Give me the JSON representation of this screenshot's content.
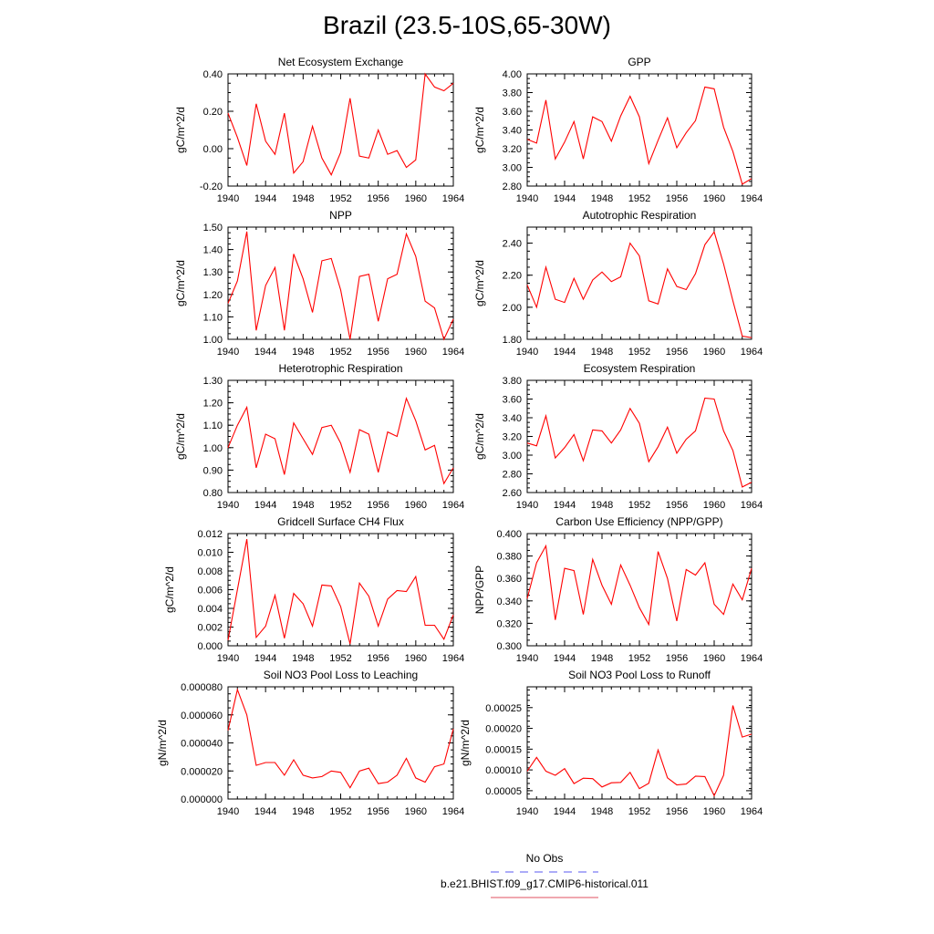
{
  "figure_title": "Brazil (23.5-10S,65-30W)",
  "legend": {
    "items": [
      {
        "label": "No Obs",
        "color": "#5a5af0",
        "dash": true
      },
      {
        "label": "b.e21.BHIST.f09_g17.CMIP6-historical.011",
        "color": "#e05060",
        "dash": false
      }
    ]
  },
  "line_color": "#ff0000",
  "chart_data": [
    {
      "type": "line",
      "title": "Net Ecosystem Exchange",
      "ylabel": "gC/m^2/d",
      "xlim": [
        1940,
        1964
      ],
      "xticks": [
        "1940",
        "1944",
        "1948",
        "1952",
        "1956",
        "1960",
        "1964"
      ],
      "ylim": [
        -0.2,
        0.4
      ],
      "yticks": [
        "-0.20",
        "0.00",
        "0.20",
        "0.40"
      ],
      "x": [
        1940,
        1941,
        1942,
        1943,
        1944,
        1945,
        1946,
        1947,
        1948,
        1949,
        1950,
        1951,
        1952,
        1953,
        1954,
        1955,
        1956,
        1957,
        1958,
        1959,
        1960,
        1961,
        1962,
        1963,
        1964
      ],
      "y": [
        0.19,
        0.06,
        -0.09,
        0.24,
        0.04,
        -0.03,
        0.19,
        -0.13,
        -0.07,
        0.12,
        -0.05,
        -0.14,
        -0.02,
        0.27,
        -0.04,
        -0.05,
        0.1,
        -0.03,
        -0.01,
        -0.1,
        -0.06,
        0.4,
        0.33,
        0.31,
        0.35
      ]
    },
    {
      "type": "line",
      "title": "GPP",
      "ylabel": "gC/m^2/d",
      "xlim": [
        1940,
        1964
      ],
      "xticks": [
        "1940",
        "1944",
        "1948",
        "1952",
        "1956",
        "1960",
        "1964"
      ],
      "ylim": [
        2.8,
        4.0
      ],
      "yticks": [
        "2.80",
        "3.00",
        "3.20",
        "3.40",
        "3.60",
        "3.80",
        "4.00"
      ],
      "x": [
        1940,
        1941,
        1942,
        1943,
        1944,
        1945,
        1946,
        1947,
        1948,
        1949,
        1950,
        1951,
        1952,
        1953,
        1954,
        1955,
        1956,
        1957,
        1958,
        1959,
        1960,
        1961,
        1962,
        1963,
        1964
      ],
      "y": [
        3.3,
        3.26,
        3.72,
        3.09,
        3.27,
        3.49,
        3.09,
        3.54,
        3.49,
        3.28,
        3.55,
        3.76,
        3.54,
        3.04,
        3.29,
        3.53,
        3.21,
        3.37,
        3.5,
        3.86,
        3.84,
        3.43,
        3.17,
        2.82,
        2.88
      ]
    },
    {
      "type": "line",
      "title": "NPP",
      "ylabel": "gC/m^2/d",
      "xlim": [
        1940,
        1964
      ],
      "xticks": [
        "1940",
        "1944",
        "1948",
        "1952",
        "1956",
        "1960",
        "1964"
      ],
      "ylim": [
        1.0,
        1.5
      ],
      "yticks": [
        "1.00",
        "1.10",
        "1.20",
        "1.30",
        "1.40",
        "1.50"
      ],
      "x": [
        1940,
        1941,
        1942,
        1943,
        1944,
        1945,
        1946,
        1947,
        1948,
        1949,
        1950,
        1951,
        1952,
        1953,
        1954,
        1955,
        1956,
        1957,
        1958,
        1959,
        1960,
        1961,
        1962,
        1963,
        1964
      ],
      "y": [
        1.16,
        1.26,
        1.48,
        1.04,
        1.24,
        1.32,
        1.04,
        1.38,
        1.27,
        1.12,
        1.35,
        1.36,
        1.22,
        1.0,
        1.28,
        1.29,
        1.08,
        1.27,
        1.29,
        1.47,
        1.37,
        1.17,
        1.14,
        1.0,
        1.09
      ]
    },
    {
      "type": "line",
      "title": "Autotrophic Respiration",
      "ylabel": "gC/m^2/d",
      "xlim": [
        1940,
        1964
      ],
      "xticks": [
        "1940",
        "1944",
        "1948",
        "1952",
        "1956",
        "1960",
        "1964"
      ],
      "ylim": [
        1.8,
        2.5
      ],
      "yticks": [
        "1.80",
        "2.00",
        "2.20",
        "2.40"
      ],
      "x": [
        1940,
        1941,
        1942,
        1943,
        1944,
        1945,
        1946,
        1947,
        1948,
        1949,
        1950,
        1951,
        1952,
        1953,
        1954,
        1955,
        1956,
        1957,
        1958,
        1959,
        1960,
        1961,
        1962,
        1963,
        1964
      ],
      "y": [
        2.14,
        2.0,
        2.25,
        2.05,
        2.03,
        2.18,
        2.05,
        2.17,
        2.22,
        2.16,
        2.19,
        2.4,
        2.32,
        2.04,
        2.02,
        2.24,
        2.13,
        2.11,
        2.21,
        2.39,
        2.47,
        2.27,
        2.04,
        1.82,
        1.81
      ]
    },
    {
      "type": "line",
      "title": "Heterotrophic Respiration",
      "ylabel": "gC/m^2/d",
      "xlim": [
        1940,
        1964
      ],
      "xticks": [
        "1940",
        "1944",
        "1948",
        "1952",
        "1956",
        "1960",
        "1964"
      ],
      "ylim": [
        0.8,
        1.3
      ],
      "yticks": [
        "0.80",
        "0.90",
        "1.00",
        "1.10",
        "1.20",
        "1.30"
      ],
      "x": [
        1940,
        1941,
        1942,
        1943,
        1944,
        1945,
        1946,
        1947,
        1948,
        1949,
        1950,
        1951,
        1952,
        1953,
        1954,
        1955,
        1956,
        1957,
        1958,
        1959,
        1960,
        1961,
        1962,
        1963,
        1964
      ],
      "y": [
        1.0,
        1.1,
        1.18,
        0.91,
        1.06,
        1.04,
        0.88,
        1.11,
        1.04,
        0.97,
        1.09,
        1.1,
        1.02,
        0.89,
        1.08,
        1.06,
        0.89,
        1.07,
        1.05,
        1.22,
        1.12,
        0.99,
        1.01,
        0.84,
        0.91
      ]
    },
    {
      "type": "line",
      "title": "Ecosystem Respiration",
      "ylabel": "gC/m^2/d",
      "xlim": [
        1940,
        1964
      ],
      "xticks": [
        "1940",
        "1944",
        "1948",
        "1952",
        "1956",
        "1960",
        "1964"
      ],
      "ylim": [
        2.6,
        3.8
      ],
      "yticks": [
        "2.60",
        "2.80",
        "3.00",
        "3.20",
        "3.40",
        "3.60",
        "3.80"
      ],
      "x": [
        1940,
        1941,
        1942,
        1943,
        1944,
        1945,
        1946,
        1947,
        1948,
        1949,
        1950,
        1951,
        1952,
        1953,
        1954,
        1955,
        1956,
        1957,
        1958,
        1959,
        1960,
        1961,
        1962,
        1963,
        1964
      ],
      "y": [
        3.13,
        3.1,
        3.42,
        2.97,
        3.08,
        3.22,
        2.94,
        3.27,
        3.26,
        3.13,
        3.27,
        3.5,
        3.34,
        2.93,
        3.09,
        3.3,
        3.02,
        3.17,
        3.26,
        3.61,
        3.6,
        3.26,
        3.05,
        2.66,
        2.71
      ]
    },
    {
      "type": "line",
      "title": "Gridcell Surface CH4 Flux",
      "ylabel": "gC/m^2/d",
      "xlim": [
        1940,
        1964
      ],
      "xticks": [
        "1940",
        "1944",
        "1948",
        "1952",
        "1956",
        "1960",
        "1964"
      ],
      "ylim": [
        0.0,
        0.012
      ],
      "yticks": [
        "0.000",
        "0.002",
        "0.004",
        "0.006",
        "0.008",
        "0.010",
        "0.012"
      ],
      "x": [
        1940,
        1941,
        1942,
        1943,
        1944,
        1945,
        1946,
        1947,
        1948,
        1949,
        1950,
        1951,
        1952,
        1953,
        1954,
        1955,
        1956,
        1957,
        1958,
        1959,
        1960,
        1961,
        1962,
        1963,
        1964
      ],
      "y": [
        0.0006,
        0.006,
        0.0114,
        0.0009,
        0.0021,
        0.0054,
        0.0008,
        0.0056,
        0.0045,
        0.0021,
        0.0065,
        0.0064,
        0.0042,
        0.0002,
        0.0067,
        0.0053,
        0.0021,
        0.005,
        0.0059,
        0.0058,
        0.0074,
        0.0022,
        0.0022,
        0.0007,
        0.0033
      ]
    },
    {
      "type": "line",
      "title": "Carbon Use Efficiency (NPP/GPP)",
      "ylabel": "NPP/GPP",
      "xlim": [
        1940,
        1964
      ],
      "xticks": [
        "1940",
        "1944",
        "1948",
        "1952",
        "1956",
        "1960",
        "1964"
      ],
      "ylim": [
        0.3,
        0.4
      ],
      "yticks": [
        "0.300",
        "0.320",
        "0.340",
        "0.360",
        "0.380",
        "0.400"
      ],
      "x": [
        1940,
        1941,
        1942,
        1943,
        1944,
        1945,
        1946,
        1947,
        1948,
        1949,
        1950,
        1951,
        1952,
        1953,
        1954,
        1955,
        1956,
        1957,
        1958,
        1959,
        1960,
        1961,
        1962,
        1963,
        1964
      ],
      "y": [
        0.342,
        0.374,
        0.389,
        0.323,
        0.369,
        0.367,
        0.328,
        0.377,
        0.354,
        0.337,
        0.372,
        0.354,
        0.334,
        0.319,
        0.384,
        0.36,
        0.322,
        0.368,
        0.363,
        0.374,
        0.337,
        0.328,
        0.355,
        0.341,
        0.369
      ]
    },
    {
      "type": "line",
      "title": "Soil NO3 Pool Loss to Leaching",
      "ylabel": "gN/m^2/d",
      "xlim": [
        1940,
        1964
      ],
      "xticks": [
        "1940",
        "1944",
        "1948",
        "1952",
        "1956",
        "1960",
        "1964"
      ],
      "ylim": [
        0.0,
        8e-05
      ],
      "yticks": [
        "0.000000",
        "0.000020",
        "0.000040",
        "0.000060",
        "0.000080"
      ],
      "x": [
        1940,
        1941,
        1942,
        1943,
        1944,
        1945,
        1946,
        1947,
        1948,
        1949,
        1950,
        1951,
        1952,
        1953,
        1954,
        1955,
        1956,
        1957,
        1958,
        1959,
        1960,
        1961,
        1962,
        1963,
        1964
      ],
      "y": [
        4.9e-05,
        7.8e-05,
        6e-05,
        2.4e-05,
        2.6e-05,
        2.6e-05,
        1.7e-05,
        2.8e-05,
        1.7e-05,
        1.5e-05,
        1.6e-05,
        2e-05,
        1.9e-05,
        8e-06,
        2e-05,
        2.2e-05,
        1.1e-05,
        1.2e-05,
        1.7e-05,
        2.9e-05,
        1.5e-05,
        1.2e-05,
        2.3e-05,
        2.5e-05,
        5e-05
      ]
    },
    {
      "type": "line",
      "title": "Soil NO3 Pool Loss to Runoff",
      "ylabel": "gN/m^2/d",
      "xlim": [
        1940,
        1964
      ],
      "xticks": [
        "1940",
        "1944",
        "1948",
        "1952",
        "1956",
        "1960",
        "1964"
      ],
      "ylim": [
        3e-05,
        0.0003
      ],
      "yticks": [
        "0.00005",
        "0.00010",
        "0.00015",
        "0.00020",
        "0.00025"
      ],
      "x": [
        1940,
        1941,
        1942,
        1943,
        1944,
        1945,
        1946,
        1947,
        1948,
        1949,
        1950,
        1951,
        1952,
        1953,
        1954,
        1955,
        1956,
        1957,
        1958,
        1959,
        1960,
        1961,
        1962,
        1963,
        1964
      ],
      "y": [
        9.7e-05,
        0.00013,
        9.7e-05,
        8.7e-05,
        0.000103,
        6.7e-05,
        8e-05,
        7.9e-05,
        5.9e-05,
        6.9e-05,
        7e-05,
        9.4e-05,
        5.5e-05,
        6.8e-05,
        0.000148,
        8.1e-05,
        6.4e-05,
        6.6e-05,
        8.5e-05,
        8.4e-05,
        3.8e-05,
        8.7e-05,
        0.000255,
        0.000179,
        0.000186
      ]
    }
  ]
}
